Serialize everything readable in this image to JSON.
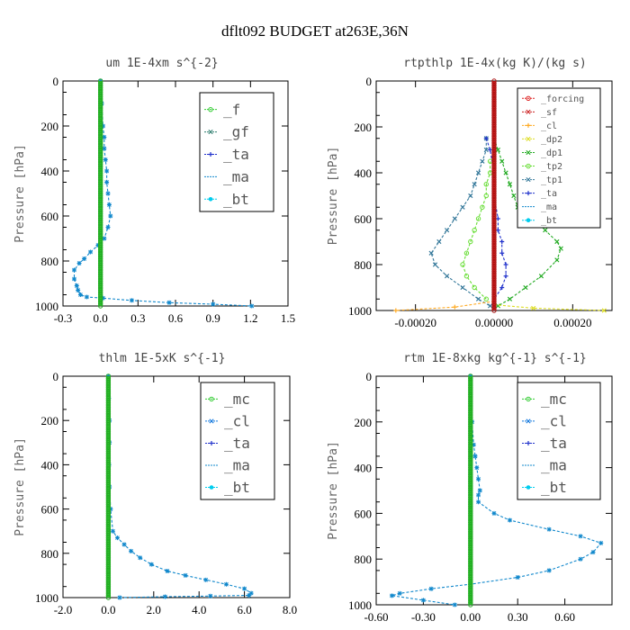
{
  "page": {
    "title": "dflt092  BUDGET at263E,36N"
  },
  "colors": {
    "f": "#33cc33",
    "gf": "#2e7d6e",
    "ta": "#2233cc",
    "ma": "#1188cc",
    "bt": "#00ccee",
    "forcing": "#dd2222",
    "sf": "#cc2222",
    "cl_orange": "#ffaa22",
    "dp2": "#dddd22",
    "dp1": "#22aa22",
    "tp2": "#66dd33",
    "tp1": "#337799",
    "mc": "#33cc33",
    "cl_blue": "#1177dd"
  },
  "chart_data": [
    {
      "type": "line",
      "title": "um  1E-4xm s^{-2}",
      "ylabel": "Pressure [hPa]",
      "xlim": [
        -0.3,
        1.5
      ],
      "ylim": [
        1000,
        0
      ],
      "xticks": [
        "-0.3",
        "0.0",
        "0.3",
        "0.6",
        "0.9",
        "1.2",
        "1.5"
      ],
      "xtick_values": [
        -0.3,
        0.0,
        0.3,
        0.6,
        0.9,
        1.2,
        1.5
      ],
      "yticks": [
        "0",
        "200",
        "400",
        "600",
        "800",
        "1000"
      ],
      "ytick_values": [
        0,
        200,
        400,
        600,
        800,
        1000
      ],
      "legend": [
        "_f",
        "_gf",
        "_ta",
        "_ma",
        "_bt"
      ],
      "legend_font": 16,
      "series": [
        {
          "name": "_bt",
          "color": "#1188cc",
          "x": [
            0.0,
            0.01,
            0.02,
            0.03,
            0.03,
            0.04,
            0.05,
            0.05,
            0.06,
            0.07,
            0.08,
            0.06,
            0.03,
            -0.02,
            -0.08,
            -0.13,
            -0.17,
            -0.21,
            -0.21,
            -0.19,
            -0.18,
            -0.16,
            -0.11,
            0.02,
            0.25,
            0.55,
            0.9,
            1.21
          ],
          "y": [
            0,
            100,
            200,
            250,
            300,
            350,
            400,
            450,
            500,
            550,
            600,
            650,
            700,
            730,
            760,
            790,
            810,
            840,
            880,
            910,
            930,
            950,
            960,
            965,
            975,
            985,
            992,
            1000
          ]
        },
        {
          "name": "_f",
          "color": "#33cc33",
          "x": [
            0.0,
            0.0
          ],
          "y": [
            0,
            1000
          ],
          "vertical": true
        }
      ]
    },
    {
      "type": "line",
      "title": "rtpthlp  1E-4x(kg K)/(kg s)",
      "ylabel": "Pressure [hPa]",
      "xlim": [
        -0.0003,
        0.0003
      ],
      "ylim": [
        1000,
        0
      ],
      "xticks": [
        "-0.00020",
        "0.00000",
        "0.00020"
      ],
      "xtick_values": [
        -0.0002,
        0.0,
        0.0002
      ],
      "yticks": [
        "0",
        "200",
        "400",
        "600",
        "800",
        "1000"
      ],
      "ytick_values": [
        0,
        200,
        400,
        600,
        800,
        1000
      ],
      "legend": [
        "_forcing",
        "_sf",
        "_cl",
        "_dp2",
        "_dp1",
        "_tp2",
        "_tp1",
        "_ta",
        "_ma",
        "_bt"
      ],
      "legend_font": 10,
      "series": [
        {
          "name": "_dp1",
          "color": "#22aa22",
          "x": [
            0.0,
            1e-05,
            2e-05,
            3e-05,
            4e-05,
            5e-05,
            6e-05,
            8e-05,
            0.0001,
            0.00013,
            0.00016,
            0.00017,
            0.00016,
            0.00012,
            8e-05,
            4e-05,
            1e-05
          ],
          "y": [
            250,
            300,
            350,
            400,
            450,
            500,
            550,
            570,
            600,
            650,
            700,
            730,
            780,
            850,
            900,
            950,
            980
          ]
        },
        {
          "name": "_tp1",
          "color": "#337799",
          "x": [
            -2e-05,
            -2e-05,
            -3e-05,
            -4e-05,
            -5e-05,
            -6e-05,
            -8e-05,
            -0.0001,
            -0.00012,
            -0.00014,
            -0.00016,
            -0.00015,
            -0.00012,
            -8e-05,
            -4e-05,
            -1e-05
          ],
          "y": [
            250,
            300,
            350,
            400,
            450,
            500,
            550,
            600,
            650,
            700,
            750,
            800,
            850,
            900,
            950,
            980
          ]
        },
        {
          "name": "_tp2",
          "color": "#66dd33",
          "x": [
            -1e-05,
            -1e-05,
            -2e-05,
            -2e-05,
            -3e-05,
            -4e-05,
            -5e-05,
            -6e-05,
            -7e-05,
            -8e-05,
            -7e-05,
            -5e-05,
            -2e-05
          ],
          "y": [
            350,
            400,
            450,
            500,
            550,
            600,
            650,
            700,
            750,
            800,
            850,
            900,
            950
          ]
        },
        {
          "name": "_ta",
          "color": "#2233cc",
          "x": [
            -2e-05,
            -1e-05,
            0.0,
            0.0,
            1e-05,
            1e-05,
            2e-05,
            2e-05,
            3e-05,
            3e-05,
            2e-05,
            0.0
          ],
          "y": [
            250,
            300,
            400,
            500,
            600,
            650,
            700,
            750,
            800,
            850,
            900,
            950
          ]
        },
        {
          "name": "_cl",
          "color": "#ffaa22",
          "x": [
            0.0,
            -0.0001,
            -0.00025
          ],
          "y": [
            960,
            985,
            1000
          ]
        },
        {
          "name": "_dp2",
          "color": "#dddd22",
          "x": [
            0.0,
            0.0001,
            0.00028
          ],
          "y": [
            975,
            990,
            1000
          ]
        },
        {
          "name": "_forcing",
          "color": "#dd2222",
          "x": [
            0.0,
            0.0
          ],
          "y": [
            0,
            1000
          ],
          "vertical": true
        }
      ]
    },
    {
      "type": "line",
      "title": "thlm  1E-5xK s^{-1}",
      "ylabel": "Pressure [hPa]",
      "xlim": [
        -2.0,
        8.0
      ],
      "ylim": [
        1000,
        0
      ],
      "xticks": [
        "-2.0",
        "0.0",
        "2.0",
        "4.0",
        "6.0",
        "8.0"
      ],
      "xtick_values": [
        -2.0,
        0.0,
        2.0,
        4.0,
        6.0,
        8.0
      ],
      "yticks": [
        "0",
        "200",
        "400",
        "600",
        "800",
        "1000"
      ],
      "ytick_values": [
        0,
        200,
        400,
        600,
        800,
        1000
      ],
      "legend": [
        "_mc",
        "_cl",
        "_ta",
        "_ma",
        "_bt"
      ],
      "legend_font": 16,
      "series": [
        {
          "name": "_bt",
          "color": "#1188cc",
          "x": [
            0.0,
            0.02,
            0.05,
            0.0,
            0.05,
            0.03,
            0.05,
            0.1,
            0.2,
            0.4,
            0.7,
            1.0,
            1.4,
            1.9,
            2.6,
            3.4,
            4.3,
            5.2,
            6.0,
            6.3,
            6.2,
            4.5,
            2.5,
            0.5
          ],
          "y": [
            0,
            100,
            200,
            250,
            300,
            400,
            500,
            600,
            700,
            730,
            760,
            790,
            820,
            850,
            880,
            900,
            920,
            940,
            960,
            980,
            990,
            993,
            996,
            1000
          ]
        },
        {
          "name": "_mc",
          "color": "#33cc33",
          "x": [
            0.0,
            0.0
          ],
          "y": [
            0,
            1000
          ],
          "vertical": true
        }
      ]
    },
    {
      "type": "line",
      "title": "rtm  1E-8xkg kg^{-1} s^{-1}",
      "ylabel": "Pressure [hPa]",
      "xlim": [
        -0.6,
        0.9
      ],
      "ylim": [
        1000,
        0
      ],
      "xticks": [
        "-0.60",
        "-0.30",
        "0.00",
        "0.30",
        "0.60"
      ],
      "xtick_values": [
        -0.6,
        -0.3,
        0.0,
        0.3,
        0.6
      ],
      "yticks": [
        "0",
        "200",
        "400",
        "600",
        "800",
        "1000"
      ],
      "ytick_values": [
        0,
        200,
        400,
        600,
        800,
        1000
      ],
      "legend": [
        "_mc",
        "_cl",
        "_ta",
        "_ma",
        "_bt"
      ],
      "legend_font": 16,
      "series": [
        {
          "name": "_bt",
          "color": "#1188cc",
          "x": [
            0.0,
            0.01,
            0.02,
            0.03,
            0.04,
            0.05,
            0.06,
            0.05,
            0.05,
            0.15,
            0.25,
            0.5,
            0.7,
            0.83,
            0.78,
            0.7,
            0.5,
            0.3,
            0.0,
            -0.25,
            -0.45,
            -0.5,
            -0.3,
            -0.1
          ],
          "y": [
            0,
            200,
            300,
            350,
            400,
            450,
            500,
            520,
            550,
            600,
            630,
            670,
            700,
            730,
            770,
            800,
            850,
            880,
            910,
            930,
            950,
            960,
            980,
            1000
          ]
        },
        {
          "name": "_mc",
          "color": "#33cc33",
          "x": [
            0.0,
            0.0
          ],
          "y": [
            0,
            1000
          ],
          "vertical": true
        }
      ]
    }
  ]
}
